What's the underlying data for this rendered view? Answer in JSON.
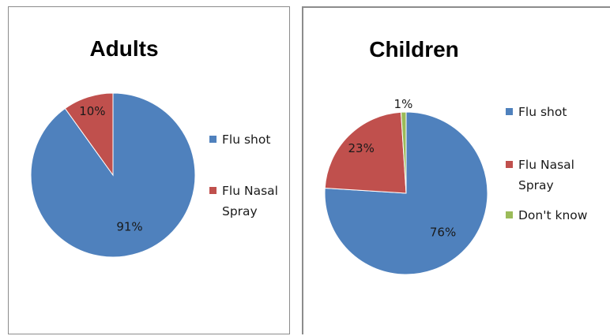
{
  "chart_data": [
    {
      "type": "pie",
      "title": "Adults",
      "categories": [
        "Flu shot",
        "Flu Nasal Spray"
      ],
      "values": [
        91,
        10
      ],
      "labels": [
        "91%",
        "10%"
      ],
      "colors": [
        "#4f81bd",
        "#c0504d"
      ],
      "legend": {
        "position": "right",
        "entries": [
          {
            "lines": [
              "Flu shot"
            ],
            "color": "#4f81bd"
          },
          {
            "lines": [
              "Flu Nasal",
              "Spray"
            ],
            "color": "#c0504d"
          }
        ]
      }
    },
    {
      "type": "pie",
      "title": "Children",
      "categories": [
        "Flu shot",
        "Flu Nasal Spray",
        "Don't know"
      ],
      "values": [
        76,
        23,
        1
      ],
      "labels": [
        "76%",
        "23%",
        "1%"
      ],
      "colors": [
        "#4f81bd",
        "#c0504d",
        "#9bbb59"
      ],
      "legend": {
        "position": "right",
        "entries": [
          {
            "lines": [
              "Flu shot"
            ],
            "color": "#4f81bd"
          },
          {
            "lines": [
              "Flu Nasal",
              "Spray"
            ],
            "color": "#c0504d"
          },
          {
            "lines": [
              "Don't know"
            ],
            "color": "#9bbb59"
          }
        ]
      }
    }
  ]
}
